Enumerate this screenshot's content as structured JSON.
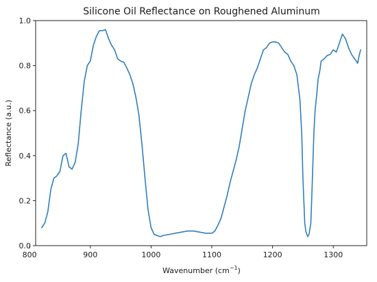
{
  "chart_data": {
    "type": "line",
    "title": "Silicone Oil Reflectance on Roughened Aluminum",
    "xlabel": "Wavenumber (cm",
    "xlabel_sup": "−1",
    "xlabel_close": ")",
    "ylabel": "Reflectance (a.u.)",
    "xlim": [
      810,
      1355
    ],
    "ylim": [
      0.0,
      1.0
    ],
    "grid": false,
    "x_ticks": [
      {
        "value": 800,
        "label": "800"
      },
      {
        "value": 900,
        "label": "900"
      },
      {
        "value": 1000,
        "label": "1000"
      },
      {
        "value": 1100,
        "label": "1100"
      },
      {
        "value": 1200,
        "label": "1200"
      },
      {
        "value": 1300,
        "label": "1300"
      }
    ],
    "y_ticks": [
      {
        "value": 0.0,
        "label": "0.0"
      },
      {
        "value": 0.2,
        "label": "0.2"
      },
      {
        "value": 0.4,
        "label": "0.4"
      },
      {
        "value": 0.6,
        "label": "0.6"
      },
      {
        "value": 0.8,
        "label": "0.8"
      },
      {
        "value": 1.0,
        "label": "1.0"
      }
    ],
    "series": [
      {
        "color": "#2f7ebc",
        "x": [
          820,
          825,
          830,
          835,
          840,
          845,
          850,
          855,
          860,
          865,
          870,
          875,
          880,
          885,
          890,
          895,
          900,
          905,
          910,
          915,
          920,
          925,
          930,
          935,
          940,
          945,
          950,
          955,
          960,
          965,
          970,
          975,
          980,
          985,
          990,
          995,
          1000,
          1005,
          1010,
          1015,
          1020,
          1030,
          1040,
          1050,
          1060,
          1070,
          1080,
          1090,
          1100,
          1105,
          1110,
          1115,
          1120,
          1125,
          1130,
          1135,
          1140,
          1145,
          1150,
          1155,
          1160,
          1165,
          1170,
          1175,
          1180,
          1185,
          1190,
          1195,
          1200,
          1205,
          1210,
          1215,
          1220,
          1225,
          1230,
          1235,
          1240,
          1245,
          1248,
          1250,
          1253,
          1255,
          1258,
          1260,
          1263,
          1265,
          1268,
          1270,
          1273,
          1275,
          1278,
          1280,
          1285,
          1290,
          1295,
          1300,
          1305,
          1310,
          1315,
          1320,
          1325,
          1330,
          1335,
          1338,
          1340,
          1343,
          1345
        ],
        "y": [
          0.08,
          0.1,
          0.15,
          0.25,
          0.3,
          0.31,
          0.33,
          0.4,
          0.41,
          0.35,
          0.34,
          0.37,
          0.45,
          0.6,
          0.73,
          0.8,
          0.82,
          0.89,
          0.93,
          0.955,
          0.955,
          0.96,
          0.92,
          0.89,
          0.87,
          0.83,
          0.82,
          0.815,
          0.79,
          0.76,
          0.72,
          0.66,
          0.58,
          0.45,
          0.3,
          0.16,
          0.08,
          0.05,
          0.045,
          0.04,
          0.045,
          0.05,
          0.055,
          0.06,
          0.065,
          0.065,
          0.06,
          0.055,
          0.055,
          0.065,
          0.09,
          0.12,
          0.17,
          0.22,
          0.28,
          0.33,
          0.38,
          0.44,
          0.52,
          0.6,
          0.66,
          0.72,
          0.76,
          0.79,
          0.83,
          0.87,
          0.88,
          0.9,
          0.905,
          0.905,
          0.9,
          0.88,
          0.86,
          0.85,
          0.82,
          0.8,
          0.76,
          0.65,
          0.5,
          0.3,
          0.1,
          0.06,
          0.04,
          0.05,
          0.1,
          0.25,
          0.5,
          0.6,
          0.68,
          0.74,
          0.78,
          0.82,
          0.83,
          0.845,
          0.85,
          0.87,
          0.86,
          0.9,
          0.94,
          0.92,
          0.88,
          0.85,
          0.83,
          0.82,
          0.81,
          0.85,
          0.87
        ]
      }
    ]
  }
}
